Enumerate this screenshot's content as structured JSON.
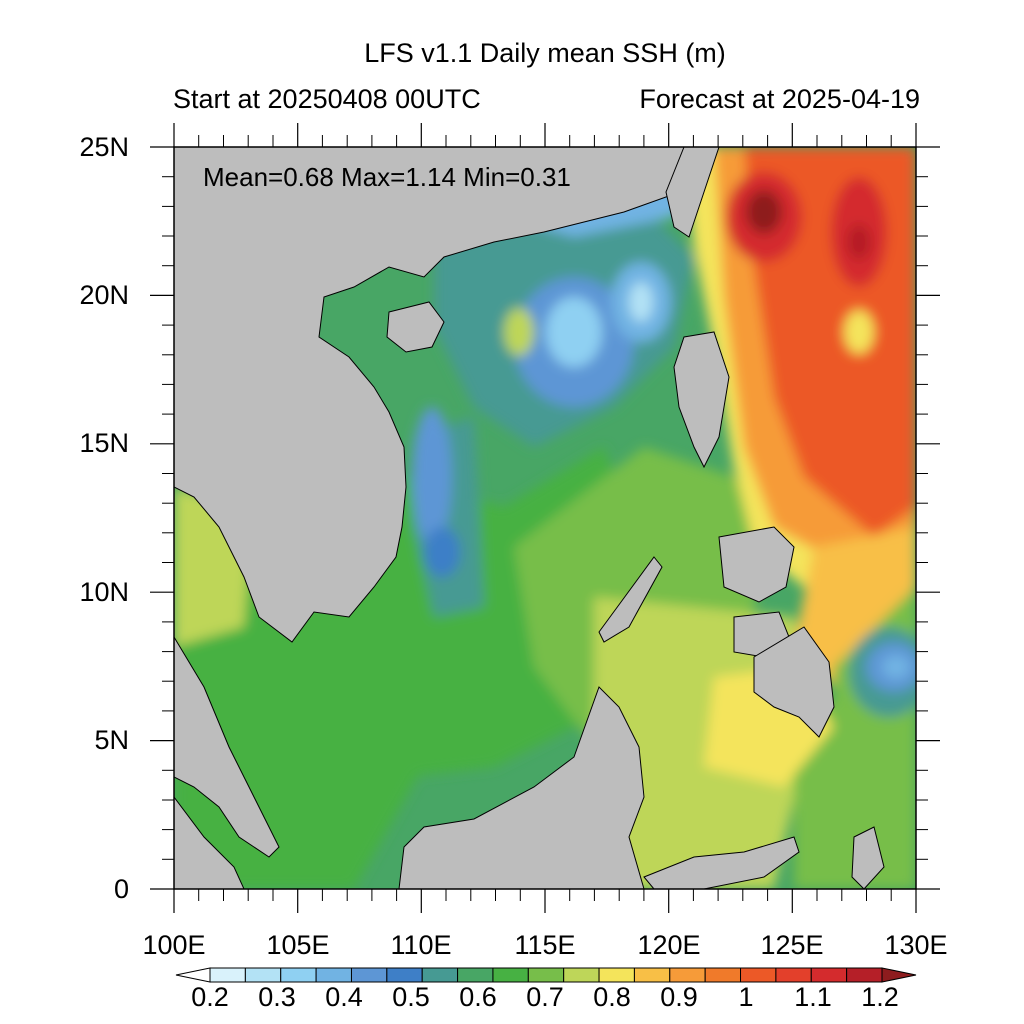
{
  "title": "LFS v1.1 Daily mean SSH (m)",
  "subtitle_left": "Start at 20250408 00UTC",
  "subtitle_right": "Forecast at 2025-04-19",
  "stats": "Mean=0.68  Max=1.14  Min=0.31",
  "map": {
    "lon_range": [
      100,
      130
    ],
    "lat_range": [
      0,
      25
    ],
    "lon_ticks": [
      "100E",
      "105E",
      "110E",
      "115E",
      "120E",
      "125E",
      "130E"
    ],
    "lat_ticks": [
      "25N",
      "20N",
      "15N",
      "10N",
      "5N",
      "0"
    ],
    "land_color": "#bdbdbd"
  },
  "colorbar": {
    "levels": [
      "0.2",
      "0.3",
      "0.4",
      "0.5",
      "0.6",
      "0.7",
      "0.8",
      "0.9",
      "1",
      "1.1",
      "1.2"
    ],
    "colors": [
      "#ffffff",
      "#d9f2fb",
      "#b3e2f5",
      "#8fd0f2",
      "#71b3e3",
      "#5d96d5",
      "#3e7fc7",
      "#469a93",
      "#48a665",
      "#47b143",
      "#77be4a",
      "#bed659",
      "#f4e45b",
      "#f8bf46",
      "#f69b39",
      "#f07a2a",
      "#ec5927",
      "#e3402b",
      "#d42b2d",
      "#b51f28",
      "#8e1c1e"
    ]
  }
}
